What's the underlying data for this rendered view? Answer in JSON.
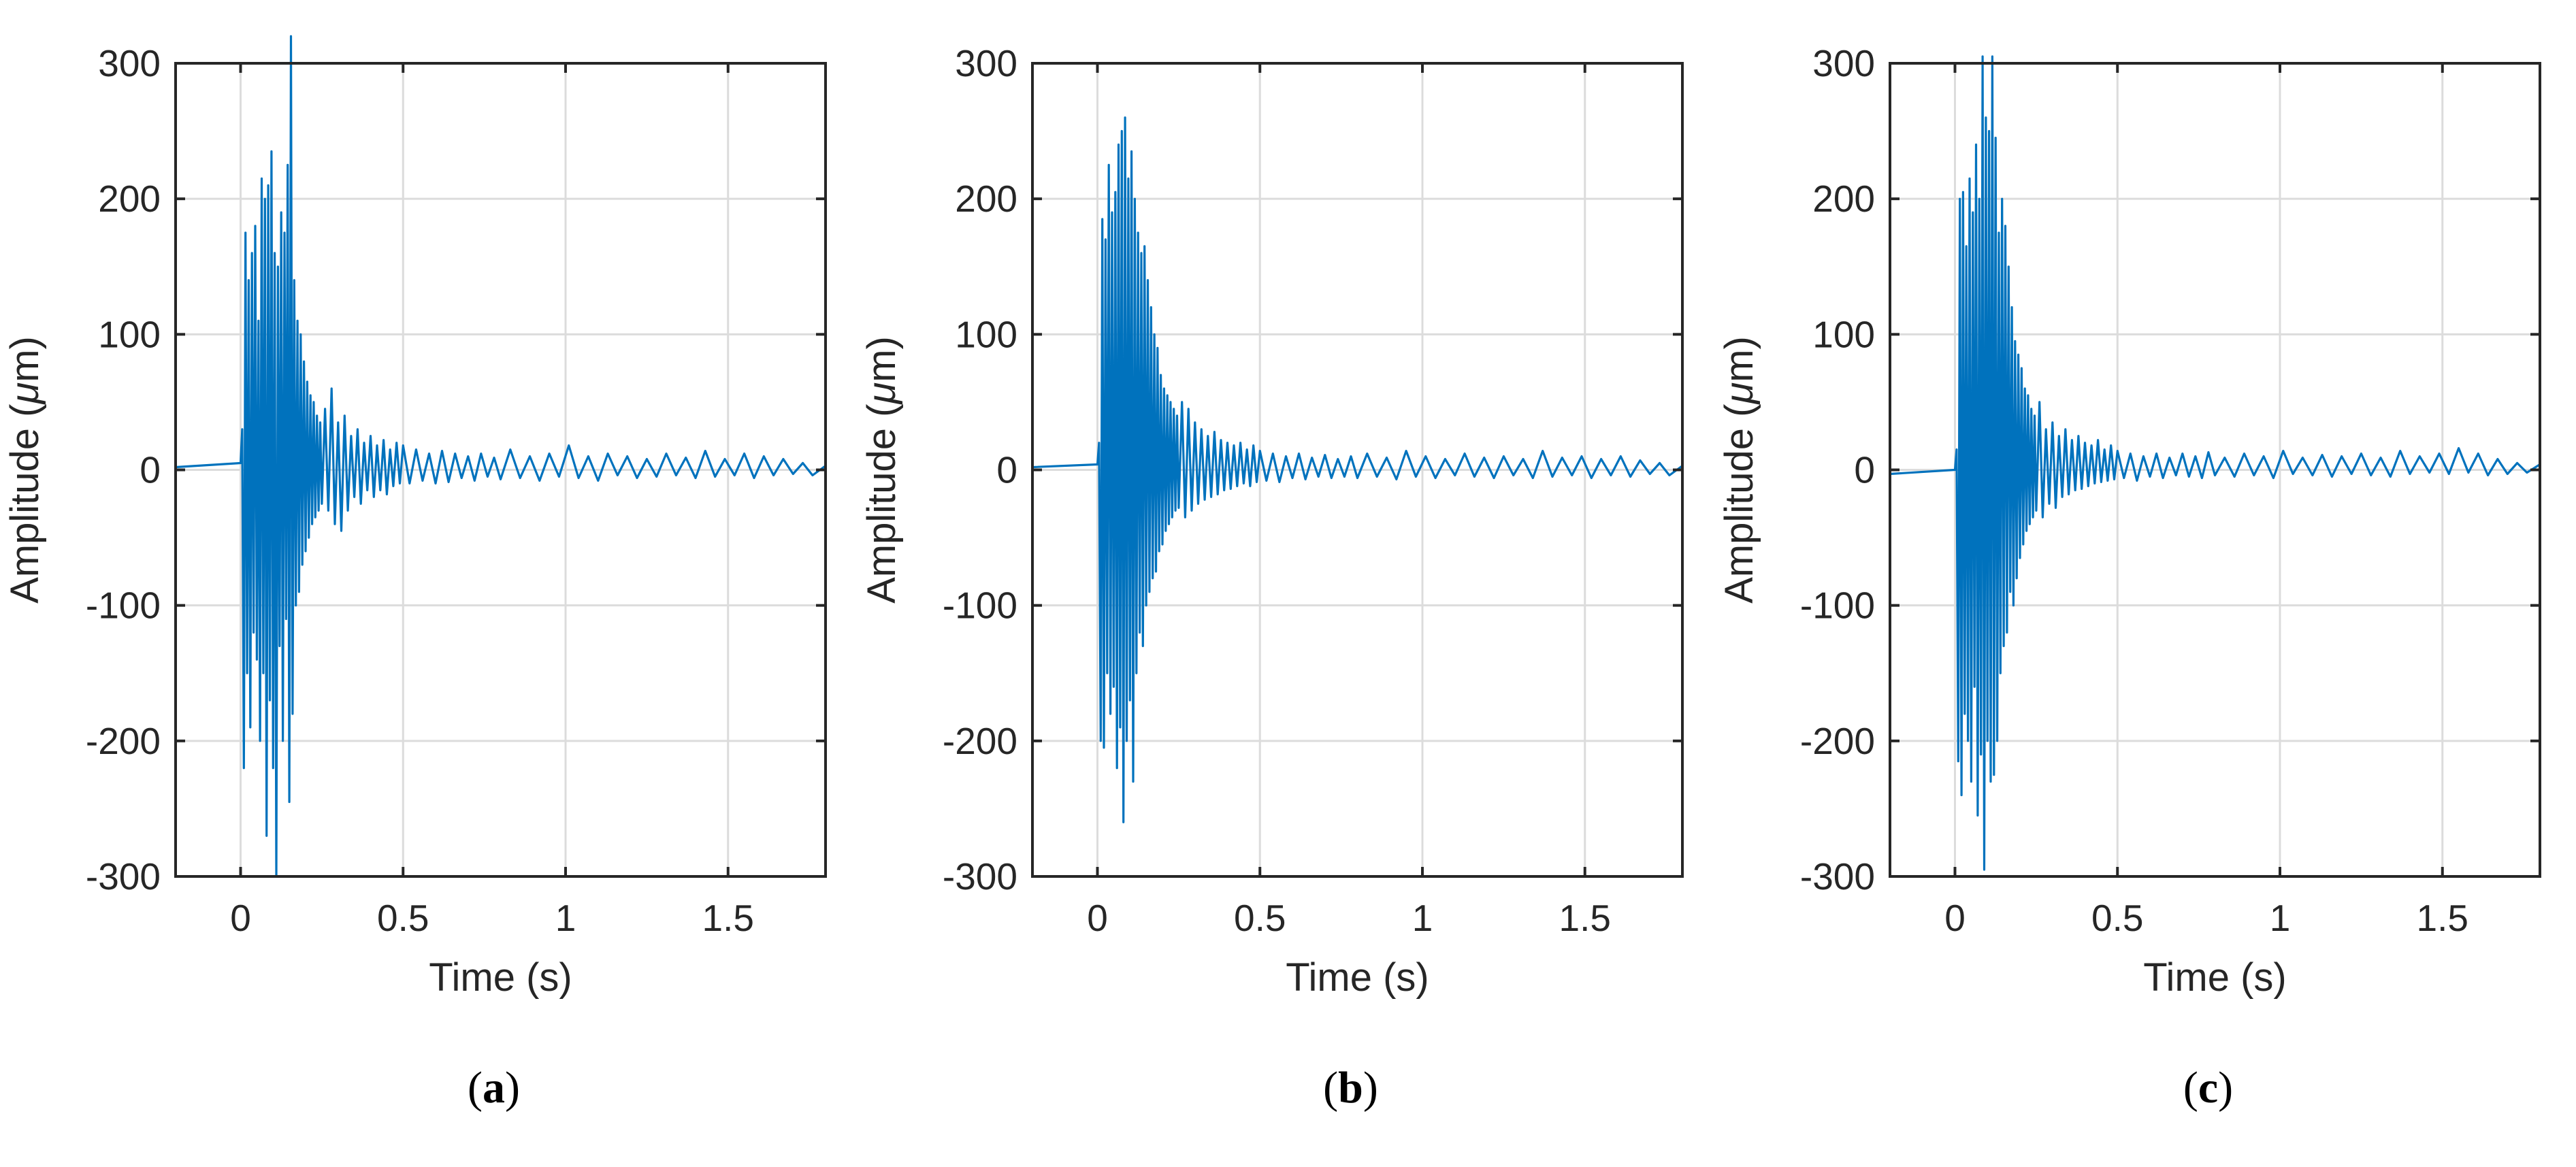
{
  "colors": {
    "series": "#0072BD",
    "axes": "#262626",
    "grid": "#dcdcdc"
  },
  "chart_data": [
    {
      "type": "line",
      "panel_label": "a",
      "xlabel": "Time (s)",
      "ylabel_prefix": "Amplitude (",
      "ylabel_unit_greek": "μ",
      "ylabel_suffix": "m)",
      "xlim": [
        -0.2,
        1.8
      ],
      "ylim": [
        -300,
        300
      ],
      "xticks": [
        0,
        0.5,
        1,
        1.5
      ],
      "xtick_labels": [
        "0",
        "0.5",
        "1",
        "1.5"
      ],
      "yticks": [
        -300,
        -200,
        -100,
        0,
        100,
        200,
        300
      ],
      "ytick_labels": [
        "-300",
        "-200",
        "-100",
        "0",
        "100",
        "200",
        "300"
      ],
      "grid": true,
      "series": [
        {
          "t": [
            -0.2,
            0.0,
            0.005,
            0.01,
            0.015,
            0.02,
            0.025,
            0.03,
            0.035,
            0.04,
            0.045,
            0.05,
            0.055,
            0.06,
            0.065,
            0.07,
            0.075,
            0.08,
            0.085,
            0.09,
            0.095,
            0.1,
            0.105,
            0.11,
            0.115,
            0.12,
            0.125,
            0.13,
            0.135,
            0.14,
            0.145,
            0.15,
            0.155,
            0.16,
            0.165,
            0.17,
            0.175,
            0.18,
            0.185,
            0.19,
            0.195,
            0.2,
            0.205,
            0.21,
            0.215,
            0.22,
            0.225,
            0.23,
            0.235,
            0.24,
            0.245,
            0.25,
            0.26,
            0.27,
            0.28,
            0.29,
            0.3,
            0.31,
            0.32,
            0.33,
            0.34,
            0.35,
            0.36,
            0.37,
            0.38,
            0.39,
            0.4,
            0.41,
            0.42,
            0.43,
            0.44,
            0.45,
            0.46,
            0.47,
            0.48,
            0.49,
            0.5,
            0.52,
            0.54,
            0.56,
            0.58,
            0.6,
            0.62,
            0.64,
            0.66,
            0.68,
            0.7,
            0.72,
            0.74,
            0.76,
            0.78,
            0.8,
            0.83,
            0.86,
            0.89,
            0.92,
            0.95,
            0.98,
            1.01,
            1.04,
            1.07,
            1.1,
            1.13,
            1.16,
            1.19,
            1.22,
            1.25,
            1.28,
            1.31,
            1.34,
            1.37,
            1.4,
            1.43,
            1.46,
            1.49,
            1.52,
            1.55,
            1.58,
            1.61,
            1.64,
            1.67,
            1.7,
            1.73,
            1.76,
            1.8
          ],
          "y": [
            2,
            5,
            30,
            -220,
            175,
            -150,
            140,
            -190,
            160,
            -120,
            180,
            -140,
            110,
            -200,
            215,
            -150,
            200,
            -270,
            210,
            -170,
            235,
            -220,
            160,
            -300,
            150,
            -130,
            190,
            -200,
            175,
            -110,
            225,
            -245,
            320,
            -180,
            140,
            -100,
            110,
            -90,
            100,
            -70,
            80,
            -60,
            65,
            -50,
            55,
            -40,
            50,
            -35,
            40,
            -30,
            35,
            -25,
            45,
            -30,
            60,
            -40,
            35,
            -45,
            40,
            -30,
            25,
            -20,
            30,
            -25,
            20,
            -15,
            25,
            -20,
            18,
            -15,
            22,
            -18,
            15,
            -12,
            20,
            -10,
            18,
            -10,
            15,
            -8,
            12,
            -10,
            14,
            -9,
            12,
            -6,
            10,
            -8,
            12,
            -5,
            9,
            -7,
            15,
            -6,
            10,
            -8,
            12,
            -5,
            18,
            -6,
            10,
            -8,
            12,
            -4,
            10,
            -6,
            8,
            -5,
            12,
            -4,
            9,
            -6,
            14,
            -5,
            8,
            -4,
            12,
            -6,
            10,
            -4,
            8,
            -3,
            5,
            -4,
            3
          ]
        }
      ]
    },
    {
      "type": "line",
      "panel_label": "b",
      "xlabel": "Time (s)",
      "ylabel_prefix": "Amplitude (",
      "ylabel_unit_greek": "μ",
      "ylabel_suffix": "m)",
      "xlim": [
        -0.2,
        1.8
      ],
      "ylim": [
        -300,
        300
      ],
      "xticks": [
        0,
        0.5,
        1,
        1.5
      ],
      "xtick_labels": [
        "0",
        "0.5",
        "1",
        "1.5"
      ],
      "yticks": [
        -300,
        -200,
        -100,
        0,
        100,
        200,
        300
      ],
      "ytick_labels": [
        "-300",
        "-200",
        "-100",
        "0",
        "100",
        "200",
        "300"
      ],
      "grid": true,
      "series": [
        {
          "t": [
            -0.2,
            0.0,
            0.005,
            0.01,
            0.015,
            0.02,
            0.025,
            0.03,
            0.035,
            0.04,
            0.045,
            0.05,
            0.055,
            0.06,
            0.065,
            0.07,
            0.075,
            0.08,
            0.085,
            0.09,
            0.095,
            0.1,
            0.105,
            0.11,
            0.115,
            0.12,
            0.125,
            0.13,
            0.135,
            0.14,
            0.145,
            0.15,
            0.155,
            0.16,
            0.165,
            0.17,
            0.175,
            0.18,
            0.185,
            0.19,
            0.195,
            0.2,
            0.205,
            0.21,
            0.215,
            0.22,
            0.225,
            0.23,
            0.235,
            0.24,
            0.245,
            0.25,
            0.26,
            0.27,
            0.28,
            0.29,
            0.3,
            0.31,
            0.32,
            0.33,
            0.34,
            0.35,
            0.36,
            0.37,
            0.38,
            0.39,
            0.4,
            0.41,
            0.42,
            0.43,
            0.44,
            0.45,
            0.46,
            0.47,
            0.48,
            0.49,
            0.5,
            0.52,
            0.54,
            0.56,
            0.58,
            0.6,
            0.62,
            0.64,
            0.66,
            0.68,
            0.7,
            0.72,
            0.74,
            0.76,
            0.78,
            0.8,
            0.83,
            0.86,
            0.89,
            0.92,
            0.95,
            0.98,
            1.01,
            1.04,
            1.07,
            1.1,
            1.13,
            1.16,
            1.19,
            1.22,
            1.25,
            1.28,
            1.31,
            1.34,
            1.37,
            1.4,
            1.43,
            1.46,
            1.49,
            1.52,
            1.55,
            1.58,
            1.61,
            1.64,
            1.67,
            1.7,
            1.73,
            1.76,
            1.8
          ],
          "y": [
            2,
            4,
            20,
            -200,
            185,
            -205,
            170,
            -150,
            225,
            -180,
            190,
            -160,
            205,
            -220,
            240,
            -190,
            250,
            -260,
            260,
            -200,
            215,
            -170,
            235,
            -230,
            200,
            -150,
            175,
            -120,
            160,
            -130,
            165,
            -100,
            140,
            -90,
            120,
            -80,
            100,
            -75,
            90,
            -60,
            70,
            -55,
            60,
            -45,
            55,
            -40,
            50,
            -35,
            45,
            -30,
            40,
            -28,
            50,
            -35,
            45,
            -30,
            35,
            -25,
            30,
            -22,
            25,
            -20,
            28,
            -18,
            22,
            -15,
            20,
            -14,
            18,
            -12,
            20,
            -10,
            15,
            -12,
            18,
            -9,
            14,
            -8,
            12,
            -9,
            10,
            -6,
            12,
            -7,
            9,
            -5,
            11,
            -6,
            8,
            -5,
            10,
            -6,
            12,
            -5,
            9,
            -7,
            14,
            -5,
            10,
            -6,
            8,
            -4,
            12,
            -5,
            9,
            -6,
            10,
            -4,
            8,
            -6,
            14,
            -5,
            9,
            -4,
            10,
            -6,
            8,
            -4,
            10,
            -5,
            7,
            -3,
            5,
            -4,
            3
          ]
        }
      ]
    },
    {
      "type": "line",
      "panel_label": "c",
      "xlabel": "Time (s)",
      "ylabel_prefix": "Amplitude (",
      "ylabel_unit_greek": "μ",
      "ylabel_suffix": "m)",
      "xlim": [
        -0.2,
        1.8
      ],
      "ylim": [
        -300,
        300
      ],
      "xticks": [
        0,
        0.5,
        1,
        1.5
      ],
      "xtick_labels": [
        "0",
        "0.5",
        "1",
        "1.5"
      ],
      "yticks": [
        -300,
        -200,
        -100,
        0,
        100,
        200,
        300
      ],
      "ytick_labels": [
        "-300",
        "-200",
        "-100",
        "0",
        "100",
        "200",
        "300"
      ],
      "grid": true,
      "series": [
        {
          "t": [
            -0.2,
            0.0,
            0.005,
            0.01,
            0.015,
            0.02,
            0.025,
            0.03,
            0.035,
            0.04,
            0.045,
            0.05,
            0.055,
            0.06,
            0.065,
            0.07,
            0.075,
            0.08,
            0.085,
            0.09,
            0.095,
            0.1,
            0.105,
            0.11,
            0.115,
            0.12,
            0.125,
            0.13,
            0.135,
            0.14,
            0.145,
            0.15,
            0.155,
            0.16,
            0.165,
            0.17,
            0.175,
            0.18,
            0.185,
            0.19,
            0.195,
            0.2,
            0.205,
            0.21,
            0.215,
            0.22,
            0.225,
            0.23,
            0.235,
            0.24,
            0.245,
            0.25,
            0.26,
            0.27,
            0.28,
            0.29,
            0.3,
            0.31,
            0.32,
            0.33,
            0.34,
            0.35,
            0.36,
            0.37,
            0.38,
            0.39,
            0.4,
            0.41,
            0.42,
            0.43,
            0.44,
            0.45,
            0.46,
            0.47,
            0.48,
            0.49,
            0.5,
            0.52,
            0.54,
            0.56,
            0.58,
            0.6,
            0.62,
            0.64,
            0.66,
            0.68,
            0.7,
            0.72,
            0.74,
            0.76,
            0.78,
            0.8,
            0.83,
            0.86,
            0.89,
            0.92,
            0.95,
            0.98,
            1.01,
            1.04,
            1.07,
            1.1,
            1.13,
            1.16,
            1.19,
            1.22,
            1.25,
            1.28,
            1.31,
            1.34,
            1.37,
            1.4,
            1.43,
            1.46,
            1.49,
            1.52,
            1.55,
            1.58,
            1.61,
            1.64,
            1.67,
            1.7,
            1.73,
            1.76,
            1.8
          ],
          "y": [
            -3,
            0,
            15,
            -215,
            200,
            -240,
            205,
            -180,
            165,
            -200,
            215,
            -230,
            190,
            -160,
            240,
            -255,
            200,
            -210,
            305,
            -295,
            260,
            -200,
            250,
            -230,
            305,
            -225,
            245,
            -200,
            175,
            -150,
            200,
            -130,
            180,
            -120,
            150,
            -90,
            120,
            -100,
            95,
            -80,
            85,
            -65,
            75,
            -55,
            60,
            -45,
            55,
            -40,
            45,
            -35,
            40,
            -30,
            50,
            -35,
            30,
            -25,
            35,
            -28,
            25,
            -20,
            30,
            -18,
            22,
            -15,
            25,
            -14,
            20,
            -12,
            18,
            -10,
            22,
            -9,
            15,
            -8,
            18,
            -7,
            14,
            -6,
            12,
            -8,
            10,
            -5,
            12,
            -6,
            9,
            -4,
            12,
            -5,
            10,
            -6,
            13,
            -4,
            9,
            -5,
            12,
            -4,
            10,
            -6,
            14,
            -3,
            9,
            -4,
            11,
            -5,
            10,
            -3,
            12,
            -4,
            9,
            -5,
            14,
            -3,
            10,
            -2,
            12,
            -3,
            16,
            -2,
            12,
            -4,
            8,
            -3,
            5,
            -2,
            4
          ]
        }
      ]
    }
  ]
}
